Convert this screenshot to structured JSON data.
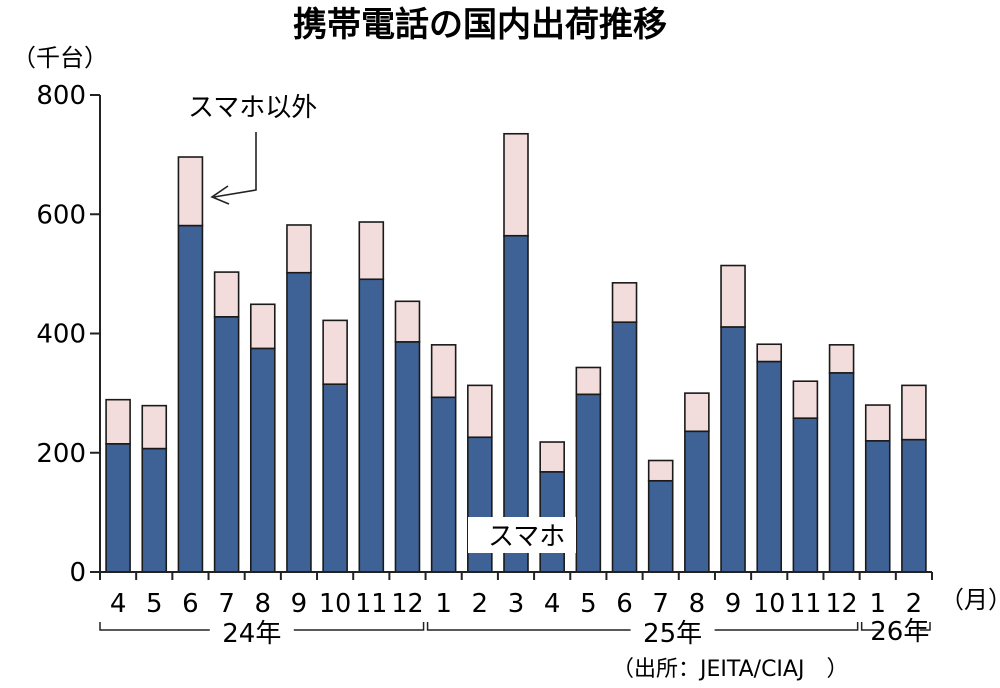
{
  "chart_data": {
    "type": "bar",
    "stacked": true,
    "title": "携帯電話の国内出荷推移",
    "ylabel": "（千台）",
    "xlabel": "（月）",
    "ylim": [
      0,
      800
    ],
    "yticks": [
      0,
      200,
      400,
      600,
      800
    ],
    "categories": [
      "4",
      "5",
      "6",
      "7",
      "8",
      "9",
      "10",
      "11",
      "12",
      "1",
      "2",
      "3",
      "4",
      "5",
      "6",
      "7",
      "8",
      "9",
      "10",
      "11",
      "12",
      "1",
      "2"
    ],
    "year_groups": [
      {
        "label": "24年",
        "start": 0,
        "end": 8
      },
      {
        "label": "25年",
        "start": 9,
        "end": 20
      },
      {
        "label": "26年",
        "start": 21,
        "end": 22
      }
    ],
    "series": [
      {
        "name": "スマホ",
        "color": "#3f6296",
        "values": [
          215,
          207,
          581,
          428,
          375,
          502,
          315,
          491,
          386,
          293,
          226,
          564,
          168,
          298,
          419,
          153,
          236,
          411,
          353,
          258,
          334,
          220,
          222
        ]
      },
      {
        "name": "スマホ以外",
        "color": "#f3dcdc",
        "values": [
          74,
          72,
          115,
          75,
          74,
          80,
          107,
          96,
          68,
          88,
          87,
          171,
          50,
          45,
          66,
          34,
          64,
          103,
          29,
          62,
          47,
          60,
          91
        ]
      }
    ],
    "source": "（出所：JEITA/CIAJ　）"
  }
}
